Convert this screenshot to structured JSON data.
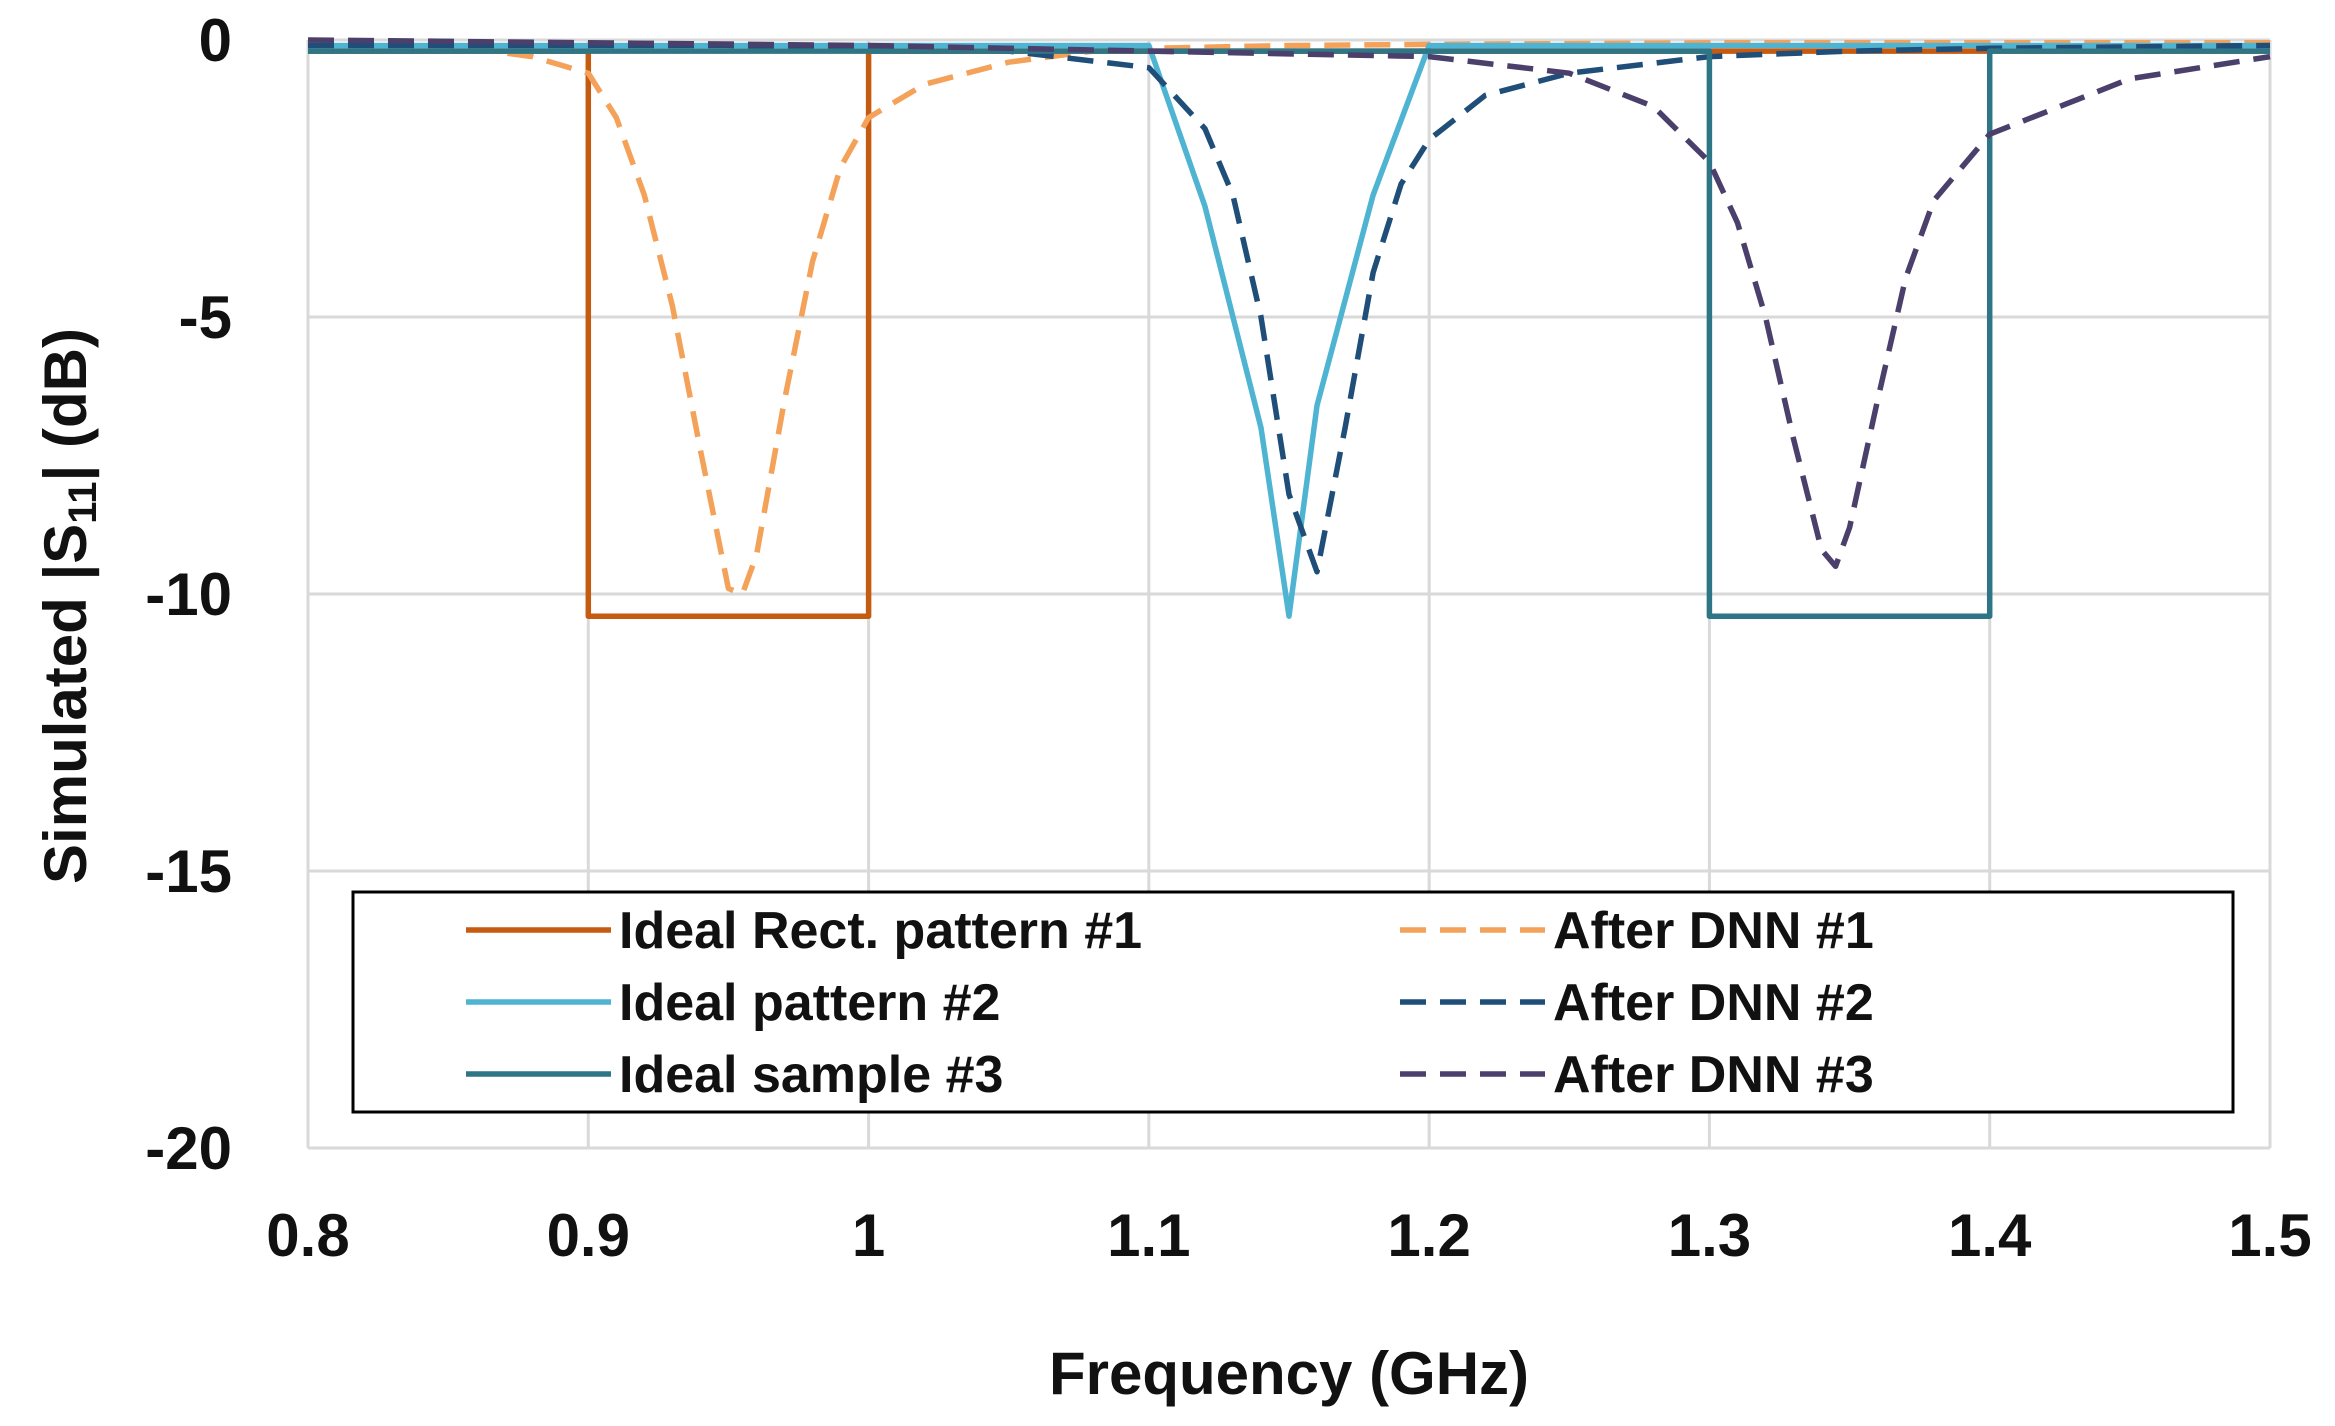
{
  "chart_data": {
    "type": "line",
    "xlabel": "Frequency (GHz)",
    "ylabel_parts": {
      "before": "Simulated |S",
      "subscript": "11",
      "after": "| (dB)"
    },
    "xlim": [
      0.8,
      1.5
    ],
    "ylim": [
      -20,
      0
    ],
    "x_ticks": [
      0.8,
      0.9,
      1.0,
      1.1,
      1.2,
      1.3,
      1.4,
      1.5
    ],
    "x_tick_labels": [
      "0.8",
      "0.9",
      "1",
      "1.1",
      "1.2",
      "1.3",
      "1.4",
      "1.5"
    ],
    "y_ticks": [
      0,
      -5,
      -10,
      -15,
      -20
    ],
    "y_tick_labels": [
      "0",
      "-5",
      "-10",
      "-15",
      "-20"
    ],
    "grid": true,
    "legend_placement": "bottom",
    "series": [
      {
        "name": "Ideal Rect. pattern #1",
        "color": "#C55A11",
        "dash": false,
        "x": [
          0.8,
          0.9,
          0.9,
          1.0,
          1.0,
          1.5
        ],
        "y": [
          -0.2,
          -0.2,
          -10.4,
          -10.4,
          -0.2,
          -0.2
        ]
      },
      {
        "name": "After DNN #1",
        "color": "#F4A15A",
        "dash": true,
        "x": [
          0.8,
          0.85,
          0.88,
          0.9,
          0.91,
          0.92,
          0.93,
          0.94,
          0.95,
          0.955,
          0.96,
          0.97,
          0.98,
          0.99,
          1.0,
          1.02,
          1.05,
          1.08,
          1.1,
          1.15,
          1.2,
          1.3,
          1.4,
          1.5
        ],
        "y": [
          -0.05,
          -0.1,
          -0.3,
          -0.6,
          -1.4,
          -2.8,
          -4.8,
          -7.4,
          -9.9,
          -10.0,
          -9.3,
          -6.5,
          -4.0,
          -2.3,
          -1.4,
          -0.8,
          -0.4,
          -0.2,
          -0.15,
          -0.1,
          -0.08,
          -0.05,
          -0.05,
          -0.05
        ]
      },
      {
        "name": "Ideal pattern #2",
        "color": "#4FB3D2",
        "dash": false,
        "x": [
          0.8,
          1.1,
          1.12,
          1.14,
          1.15,
          1.16,
          1.18,
          1.2,
          1.5
        ],
        "y": [
          -0.1,
          -0.1,
          -3.0,
          -7.0,
          -10.4,
          -6.6,
          -2.8,
          -0.1,
          -0.1
        ]
      },
      {
        "name": "After DNN #2",
        "color": "#1F4E79",
        "dash": true,
        "x": [
          0.8,
          0.95,
          1.05,
          1.1,
          1.12,
          1.13,
          1.14,
          1.15,
          1.16,
          1.17,
          1.18,
          1.19,
          1.2,
          1.22,
          1.25,
          1.3,
          1.35,
          1.4,
          1.5
        ],
        "y": [
          -0.1,
          -0.1,
          -0.2,
          -0.5,
          -1.6,
          -2.8,
          -5.0,
          -8.2,
          -9.6,
          -7.0,
          -4.2,
          -2.6,
          -1.8,
          -1.0,
          -0.6,
          -0.3,
          -0.2,
          -0.15,
          -0.1
        ]
      },
      {
        "name": "Ideal sample #3",
        "color": "#2E7585",
        "dash": false,
        "x": [
          0.8,
          1.3,
          1.3,
          1.4,
          1.4,
          1.5
        ],
        "y": [
          -0.2,
          -0.2,
          -10.4,
          -10.4,
          -0.2,
          -0.2
        ]
      },
      {
        "name": "After DNN #3",
        "color": "#4B3F6B",
        "dash": true,
        "x": [
          0.8,
          1.0,
          1.1,
          1.2,
          1.25,
          1.28,
          1.3,
          1.31,
          1.32,
          1.33,
          1.34,
          1.345,
          1.35,
          1.36,
          1.37,
          1.38,
          1.4,
          1.45,
          1.5
        ],
        "y": [
          0.0,
          -0.1,
          -0.2,
          -0.3,
          -0.6,
          -1.2,
          -2.2,
          -3.3,
          -5.0,
          -7.2,
          -9.2,
          -9.5,
          -8.8,
          -6.5,
          -4.3,
          -2.9,
          -1.7,
          -0.7,
          -0.3
        ]
      }
    ],
    "legend_order": [
      0,
      1,
      2,
      3,
      4,
      5
    ]
  }
}
